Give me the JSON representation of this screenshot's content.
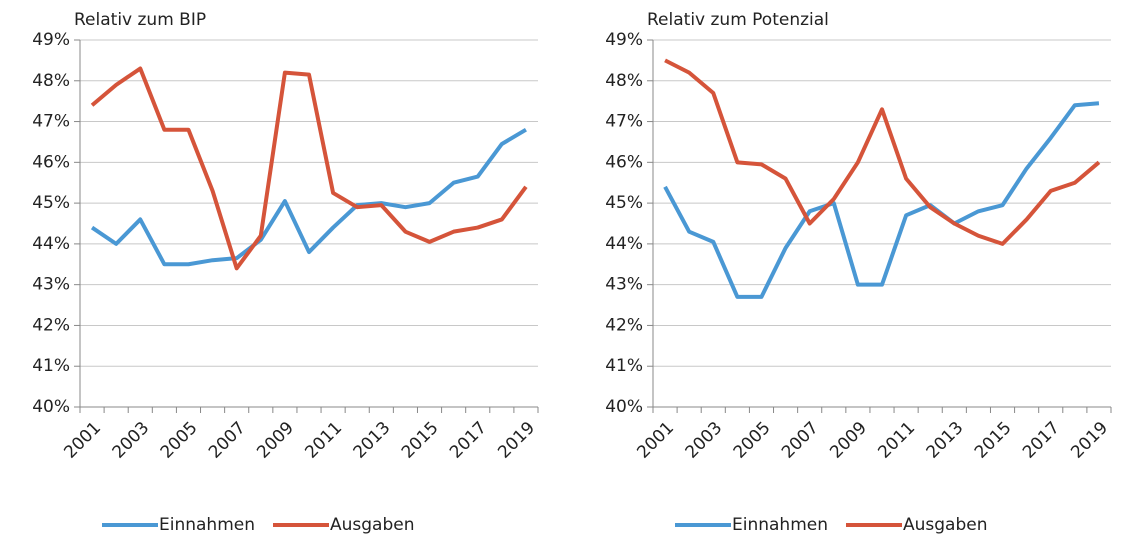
{
  "chart_data": [
    {
      "type": "line",
      "title": "Relativ zum BIP",
      "categories": [
        "2001",
        null,
        "2003",
        null,
        "2005",
        null,
        "2007",
        null,
        "2009",
        null,
        "2011",
        null,
        "2013",
        null,
        "2015",
        null,
        "2017",
        null,
        "2019"
      ],
      "series": [
        {
          "name": "Einnahmen",
          "color": "#4a98d4",
          "values": [
            44.4,
            44.0,
            44.6,
            43.5,
            43.5,
            43.6,
            43.65,
            44.1,
            45.05,
            43.8,
            44.4,
            44.95,
            45.0,
            44.9,
            45.0,
            45.5,
            45.65,
            46.45,
            46.8
          ]
        },
        {
          "name": "Ausgaben",
          "color": "#d5543a",
          "values": [
            47.4,
            47.9,
            48.3,
            46.8,
            46.8,
            45.3,
            43.4,
            44.2,
            48.2,
            48.15,
            45.25,
            44.9,
            44.95,
            44.3,
            44.05,
            44.3,
            44.4,
            44.6,
            45.4
          ]
        }
      ],
      "ylim": [
        40,
        49
      ],
      "yticks": [
        {
          "value": 40,
          "label": "40%"
        },
        {
          "value": 41,
          "label": "41%"
        },
        {
          "value": 42,
          "label": "42%"
        },
        {
          "value": 43,
          "label": "43%"
        },
        {
          "value": 44,
          "label": "44%"
        },
        {
          "value": 45,
          "label": "45%"
        },
        {
          "value": 46,
          "label": "46%"
        },
        {
          "value": 47,
          "label": "47%"
        },
        {
          "value": 48,
          "label": "48%"
        },
        {
          "value": 49,
          "label": "49%"
        }
      ],
      "grid": true,
      "legend": "bottom"
    },
    {
      "type": "line",
      "title": "Relativ zum Potenzial",
      "categories": [
        "2001",
        null,
        "2003",
        null,
        "2005",
        null,
        "2007",
        null,
        "2009",
        null,
        "2011",
        null,
        "2013",
        null,
        "2015",
        null,
        "2017",
        null,
        "2019"
      ],
      "series": [
        {
          "name": "Einnahmen",
          "color": "#4a98d4",
          "values": [
            45.4,
            44.3,
            44.05,
            42.7,
            42.7,
            43.9,
            44.8,
            45.0,
            43.0,
            43.0,
            44.7,
            44.95,
            44.5,
            44.8,
            44.95,
            45.85,
            46.6,
            47.4,
            47.45
          ]
        },
        {
          "name": "Ausgaben",
          "color": "#d5543a",
          "values": [
            48.5,
            48.2,
            47.7,
            46.0,
            45.95,
            45.6,
            44.5,
            45.1,
            46.0,
            47.3,
            45.6,
            44.9,
            44.5,
            44.2,
            44.0,
            44.6,
            45.3,
            45.5,
            46.0
          ]
        }
      ],
      "ylim": [
        40,
        49
      ],
      "yticks": [
        {
          "value": 40,
          "label": "40%"
        },
        {
          "value": 41,
          "label": "41%"
        },
        {
          "value": 42,
          "label": "42%"
        },
        {
          "value": 43,
          "label": "43%"
        },
        {
          "value": 44,
          "label": "44%"
        },
        {
          "value": 45,
          "label": "45%"
        },
        {
          "value": 46,
          "label": "46%"
        },
        {
          "value": 47,
          "label": "47%"
        },
        {
          "value": 48,
          "label": "48%"
        },
        {
          "value": 49,
          "label": "49%"
        }
      ],
      "grid": true,
      "legend": "bottom"
    }
  ]
}
